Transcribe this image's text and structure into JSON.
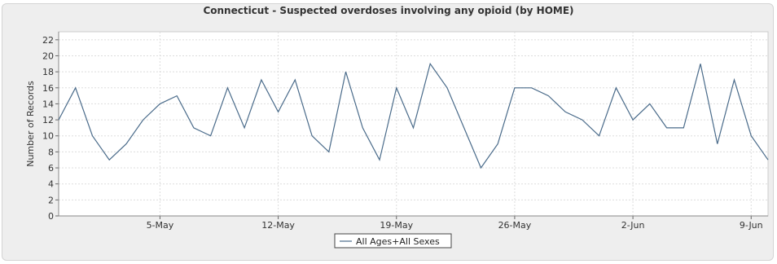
{
  "chart_data": {
    "type": "line",
    "title": "Connecticut - Suspected overdoses involving any opioid (by HOME)",
    "xlabel": "",
    "ylabel": "Number of Records",
    "ylim": [
      0,
      23
    ],
    "yticks": [
      0,
      2,
      4,
      6,
      8,
      10,
      12,
      14,
      16,
      18,
      20,
      22
    ],
    "x_tick_labels": [
      "5-May",
      "12-May",
      "19-May",
      "26-May",
      "2-Jun",
      "9-Jun"
    ],
    "x": [
      "Apr-29",
      "Apr-30",
      "May-1",
      "May-2",
      "May-3",
      "May-4",
      "May-5",
      "May-6",
      "May-7",
      "May-8",
      "May-9",
      "May-10",
      "May-11",
      "May-12",
      "May-13",
      "May-14",
      "May-15",
      "May-16",
      "May-17",
      "May-18",
      "May-19",
      "May-20",
      "May-21",
      "May-22",
      "May-23",
      "May-24",
      "May-25",
      "May-26",
      "May-27",
      "May-28",
      "May-29",
      "May-30",
      "May-31",
      "Jun-1",
      "Jun-2",
      "Jun-3",
      "Jun-4",
      "Jun-5",
      "Jun-6",
      "Jun-7",
      "Jun-8",
      "Jun-9",
      "Jun-10"
    ],
    "series": [
      {
        "name": "All Ages+All Sexes",
        "color": "#4a6b8a",
        "values": [
          12,
          16,
          10,
          7,
          9,
          12,
          14,
          15,
          11,
          10,
          16,
          11,
          17,
          13,
          17,
          10,
          8,
          18,
          11,
          7,
          16,
          11,
          19,
          16,
          11,
          6,
          9,
          16,
          16,
          15,
          13,
          12,
          10,
          16,
          12,
          14,
          11,
          11,
          19,
          9,
          17,
          10,
          7
        ]
      }
    ],
    "grid": true,
    "legend_position": "bottom-center",
    "plot_background": "#ffffff",
    "panel_background": "#eeeeee"
  }
}
